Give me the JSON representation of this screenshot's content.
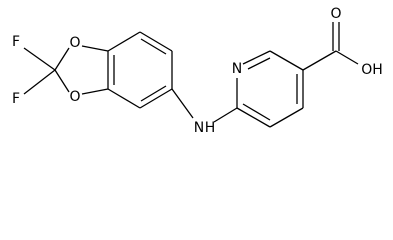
{
  "atoms": {
    "f1": "F",
    "f2": "F",
    "o1": "O",
    "o2": "O",
    "nh_n": "N",
    "nh_h": "H",
    "pyridine_n": "N",
    "carbonyl_o": "O",
    "hydroxyl": "OH"
  }
}
